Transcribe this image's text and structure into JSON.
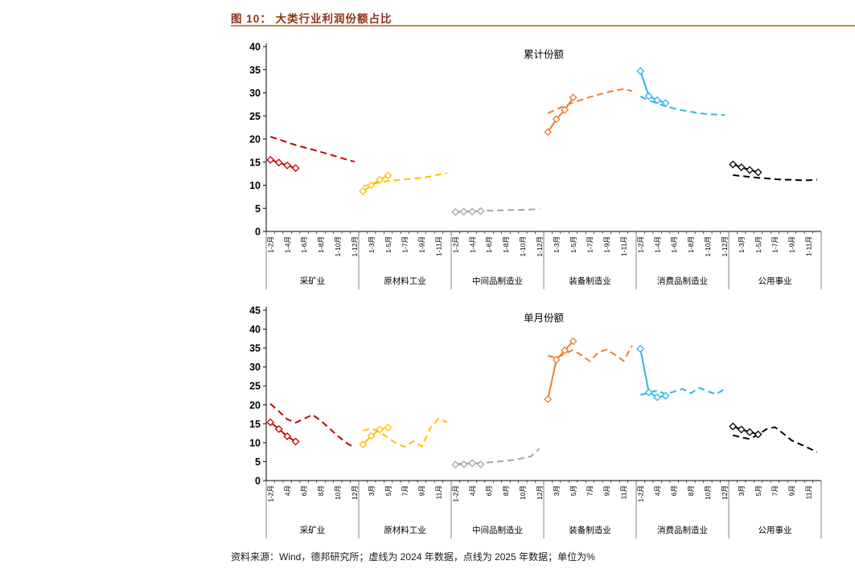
{
  "header": {
    "title": "图 10： 大类行业利润份额占比"
  },
  "footer": {
    "source": "资料来源：Wind，德邦研究所；虚线为 2024 年数据，点线为 2025 年数据；单位为%"
  },
  "theme": {
    "title_color": "#8E3118",
    "rule_color": "#C08A54"
  },
  "chart_data": [
    {
      "type": "line",
      "title": "累计份额",
      "unit": "%",
      "ylim": [
        0,
        40
      ],
      "ytick_step": 5,
      "legend_note": {
        "dashed_line": "2024年数据",
        "marker_line": "2025年数据"
      },
      "tick_labels": [
        "1-2月",
        "1-3月",
        "1-4月",
        "1-5月",
        "1-6月",
        "1-7月",
        "1-8月",
        "1-9月",
        "1-10月",
        "1-11月",
        "1-12月"
      ],
      "groups": [
        {
          "name": "采矿业",
          "color": "#C00000",
          "y2024": [
            20.5,
            19.9,
            19.3,
            18.7,
            18.2,
            17.7,
            17.2,
            16.7,
            16.1,
            15.6,
            15.1
          ],
          "y2025": [
            15.5,
            14.9,
            14.3,
            13.7
          ]
        },
        {
          "name": "原材料工业",
          "color": "#FFC000",
          "y2024": [
            9.8,
            10.2,
            10.6,
            10.9,
            11.1,
            11.3,
            11.4,
            11.6,
            11.9,
            12.3,
            12.6
          ],
          "y2025": [
            8.7,
            10.0,
            11.2,
            12.1
          ]
        },
        {
          "name": "中间品制造业",
          "color": "#A6A6A6",
          "y2024": [
            4.3,
            4.35,
            4.4,
            4.45,
            4.5,
            4.55,
            4.6,
            4.65,
            4.7,
            4.75,
            4.85
          ],
          "y2025": [
            4.2,
            4.3,
            4.3,
            4.4
          ]
        },
        {
          "name": "装备制造业",
          "color": "#ED7D31",
          "y2024": [
            25.6,
            26.4,
            27.2,
            27.9,
            28.5,
            29.1,
            29.6,
            30.1,
            30.5,
            30.8,
            30.4
          ],
          "y2025": [
            21.5,
            24.3,
            26.3,
            29.0
          ]
        },
        {
          "name": "消费品制造业",
          "color": "#2FB4E9",
          "y2024": [
            29.2,
            28.4,
            27.7,
            27.1,
            26.6,
            26.2,
            25.9,
            25.6,
            25.4,
            25.3,
            25.2
          ],
          "y2025": [
            34.7,
            29.3,
            28.4,
            27.8
          ]
        },
        {
          "name": "公用事业",
          "color": "#000000",
          "y2024": [
            12.2,
            12.0,
            11.8,
            11.6,
            11.5,
            11.3,
            11.2,
            11.2,
            11.1,
            11.1,
            11.2
          ],
          "y2025": [
            14.5,
            13.9,
            13.3,
            12.8
          ]
        }
      ]
    },
    {
      "type": "line",
      "title": "单月份额",
      "unit": "%",
      "ylim": [
        0,
        45
      ],
      "ytick_step": 5,
      "legend_note": {
        "dashed_line": "2024年数据",
        "marker_line": "2025年数据"
      },
      "tick_labels": [
        "1-2月",
        "3月",
        "4月",
        "5月",
        "6月",
        "7月",
        "8月",
        "9月",
        "10月",
        "11月",
        "12月"
      ],
      "groups": [
        {
          "name": "采矿业",
          "color": "#C00000",
          "y2024": [
            20.3,
            18.3,
            16.2,
            15.3,
            16.3,
            17.4,
            15.8,
            13.8,
            11.8,
            10.0,
            8.7
          ],
          "y2025": [
            15.4,
            13.6,
            11.7,
            10.3
          ]
        },
        {
          "name": "原材料工业",
          "color": "#FFC000",
          "y2024": [
            13.2,
            13.8,
            12.8,
            11.3,
            9.8,
            8.9,
            10.4,
            9.0,
            13.8,
            16.4,
            15.4
          ],
          "y2025": [
            9.5,
            11.8,
            13.5,
            14.0
          ]
        },
        {
          "name": "中间品制造业",
          "color": "#A6A6A6",
          "y2024": [
            4.4,
            4.5,
            4.5,
            4.6,
            4.8,
            5.0,
            5.2,
            5.5,
            5.9,
            6.4,
            8.4
          ],
          "y2025": [
            4.2,
            4.3,
            4.6,
            4.3
          ]
        },
        {
          "name": "装备制造业",
          "color": "#ED7D31",
          "y2024": [
            33.0,
            32.4,
            33.5,
            34.5,
            33.1,
            31.5,
            33.9,
            34.6,
            33.2,
            31.6,
            35.6
          ],
          "y2025": [
            21.5,
            31.9,
            34.4,
            36.8
          ]
        },
        {
          "name": "消费品制造业",
          "color": "#2FB4E9",
          "y2024": [
            22.6,
            23.2,
            23.8,
            22.8,
            23.5,
            24.2,
            23.1,
            24.5,
            23.6,
            22.8,
            24.2
          ],
          "y2025": [
            34.8,
            23.3,
            22.0,
            22.4
          ]
        },
        {
          "name": "公用事业",
          "color": "#000000",
          "y2024": [
            12.0,
            11.4,
            11.0,
            12.1,
            13.6,
            14.1,
            12.4,
            10.6,
            9.6,
            8.6,
            7.5
          ],
          "y2025": [
            14.3,
            13.5,
            12.8,
            12.2
          ]
        }
      ]
    }
  ]
}
